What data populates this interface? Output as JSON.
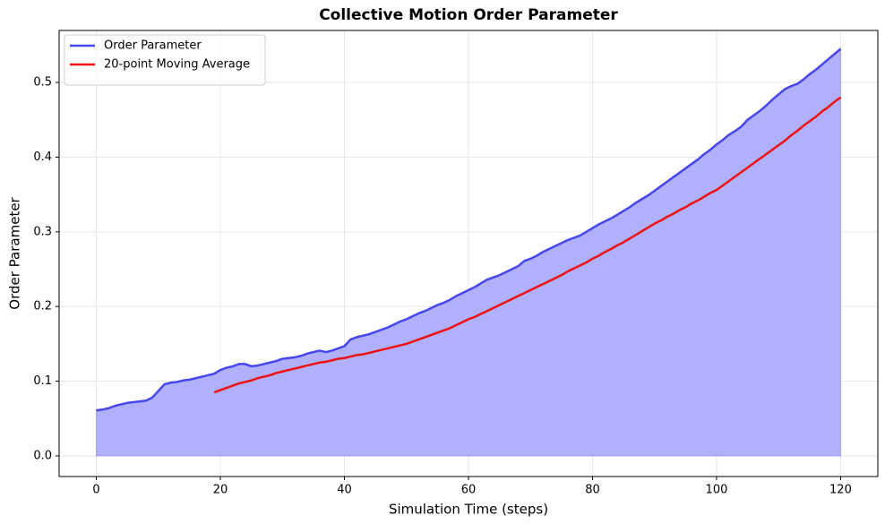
{
  "chart_data": {
    "type": "line",
    "title": "Collective Motion Order Parameter",
    "x_label": "Simulation Time (steps)",
    "y_label": "Order Parameter",
    "x": [
      0,
      1,
      2,
      3,
      4,
      5,
      6,
      7,
      8,
      9,
      10,
      11,
      12,
      13,
      14,
      15,
      16,
      17,
      18,
      19,
      20,
      21,
      22,
      23,
      24,
      25,
      26,
      27,
      28,
      29,
      30,
      31,
      32,
      33,
      34,
      35,
      36,
      37,
      38,
      39,
      40,
      41,
      42,
      43,
      44,
      45,
      46,
      47,
      48,
      49,
      50,
      51,
      52,
      53,
      54,
      55,
      56,
      57,
      58,
      59,
      60,
      61,
      62,
      63,
      64,
      65,
      66,
      67,
      68,
      69,
      70,
      71,
      72,
      73,
      74,
      75,
      76,
      77,
      78,
      79,
      80,
      81,
      82,
      83,
      84,
      85,
      86,
      87,
      88,
      89,
      90,
      91,
      92,
      93,
      94,
      95,
      96,
      97,
      98,
      99,
      100,
      101,
      102,
      103,
      104,
      105,
      106,
      107,
      108,
      109,
      110,
      111,
      112,
      113,
      114,
      115,
      116,
      117,
      118,
      119,
      120
    ],
    "series": [
      {
        "name": "Order Parameter",
        "color": "#4646ee",
        "fill_color": "#b0b0fc",
        "values": [
          0.061,
          0.062,
          0.064,
          0.067,
          0.069,
          0.071,
          0.072,
          0.073,
          0.074,
          0.078,
          0.087,
          0.096,
          0.098,
          0.099,
          0.101,
          0.102,
          0.104,
          0.106,
          0.108,
          0.11,
          0.115,
          0.118,
          0.12,
          0.123,
          0.123,
          0.12,
          0.121,
          0.123,
          0.125,
          0.127,
          0.13,
          0.131,
          0.132,
          0.134,
          0.137,
          0.139,
          0.141,
          0.139,
          0.141,
          0.144,
          0.147,
          0.156,
          0.159,
          0.161,
          0.163,
          0.166,
          0.169,
          0.172,
          0.176,
          0.18,
          0.183,
          0.187,
          0.191,
          0.194,
          0.198,
          0.202,
          0.205,
          0.209,
          0.214,
          0.218,
          0.222,
          0.226,
          0.231,
          0.236,
          0.239,
          0.242,
          0.246,
          0.25,
          0.254,
          0.261,
          0.264,
          0.268,
          0.273,
          0.277,
          0.281,
          0.285,
          0.289,
          0.292,
          0.295,
          0.3,
          0.305,
          0.31,
          0.314,
          0.318,
          0.323,
          0.328,
          0.333,
          0.339,
          0.344,
          0.349,
          0.355,
          0.361,
          0.367,
          0.373,
          0.379,
          0.385,
          0.391,
          0.397,
          0.404,
          0.41,
          0.417,
          0.423,
          0.43,
          0.435,
          0.441,
          0.45,
          0.456,
          0.462,
          0.469,
          0.477,
          0.484,
          0.491,
          0.495,
          0.498,
          0.504,
          0.511,
          0.517,
          0.524,
          0.531,
          0.538,
          0.545
        ]
      },
      {
        "name": "20-point Moving Average",
        "color": "#ee1111",
        "values": [
          null,
          null,
          null,
          null,
          null,
          null,
          null,
          null,
          null,
          null,
          null,
          null,
          null,
          null,
          null,
          null,
          null,
          null,
          null,
          0.085,
          0.088,
          0.091,
          0.094,
          0.097,
          0.099,
          0.101,
          0.104,
          0.106,
          0.108,
          0.111,
          0.113,
          0.115,
          0.117,
          0.119,
          0.121,
          0.123,
          0.125,
          0.126,
          0.128,
          0.13,
          0.131,
          0.133,
          0.135,
          0.136,
          0.138,
          0.14,
          0.142,
          0.144,
          0.146,
          0.148,
          0.15,
          0.153,
          0.156,
          0.159,
          0.162,
          0.165,
          0.168,
          0.171,
          0.175,
          0.179,
          0.183,
          0.186,
          0.19,
          0.194,
          0.198,
          0.202,
          0.206,
          0.21,
          0.214,
          0.218,
          0.222,
          0.226,
          0.23,
          0.234,
          0.238,
          0.242,
          0.247,
          0.251,
          0.255,
          0.259,
          0.264,
          0.268,
          0.273,
          0.277,
          0.282,
          0.286,
          0.291,
          0.296,
          0.301,
          0.306,
          0.311,
          0.315,
          0.32,
          0.324,
          0.329,
          0.333,
          0.338,
          0.342,
          0.347,
          0.352,
          0.356,
          0.362,
          0.368,
          0.374,
          0.38,
          0.386,
          0.392,
          0.398,
          0.404,
          0.41,
          0.416,
          0.422,
          0.429,
          0.435,
          0.442,
          0.448,
          0.454,
          0.461,
          0.467,
          0.474,
          0.48
        ]
      }
    ],
    "xlim": [
      -6,
      126
    ],
    "xticks": [
      0,
      20,
      40,
      60,
      80,
      100,
      120
    ],
    "ylim": [
      -0.0276,
      0.5696
    ],
    "yticks": [
      {
        "value": 0,
        "label": "0.0"
      },
      0.1,
      0.2,
      0.3,
      0.4,
      0.5
    ],
    "grid": true,
    "legend": "upper left"
  }
}
